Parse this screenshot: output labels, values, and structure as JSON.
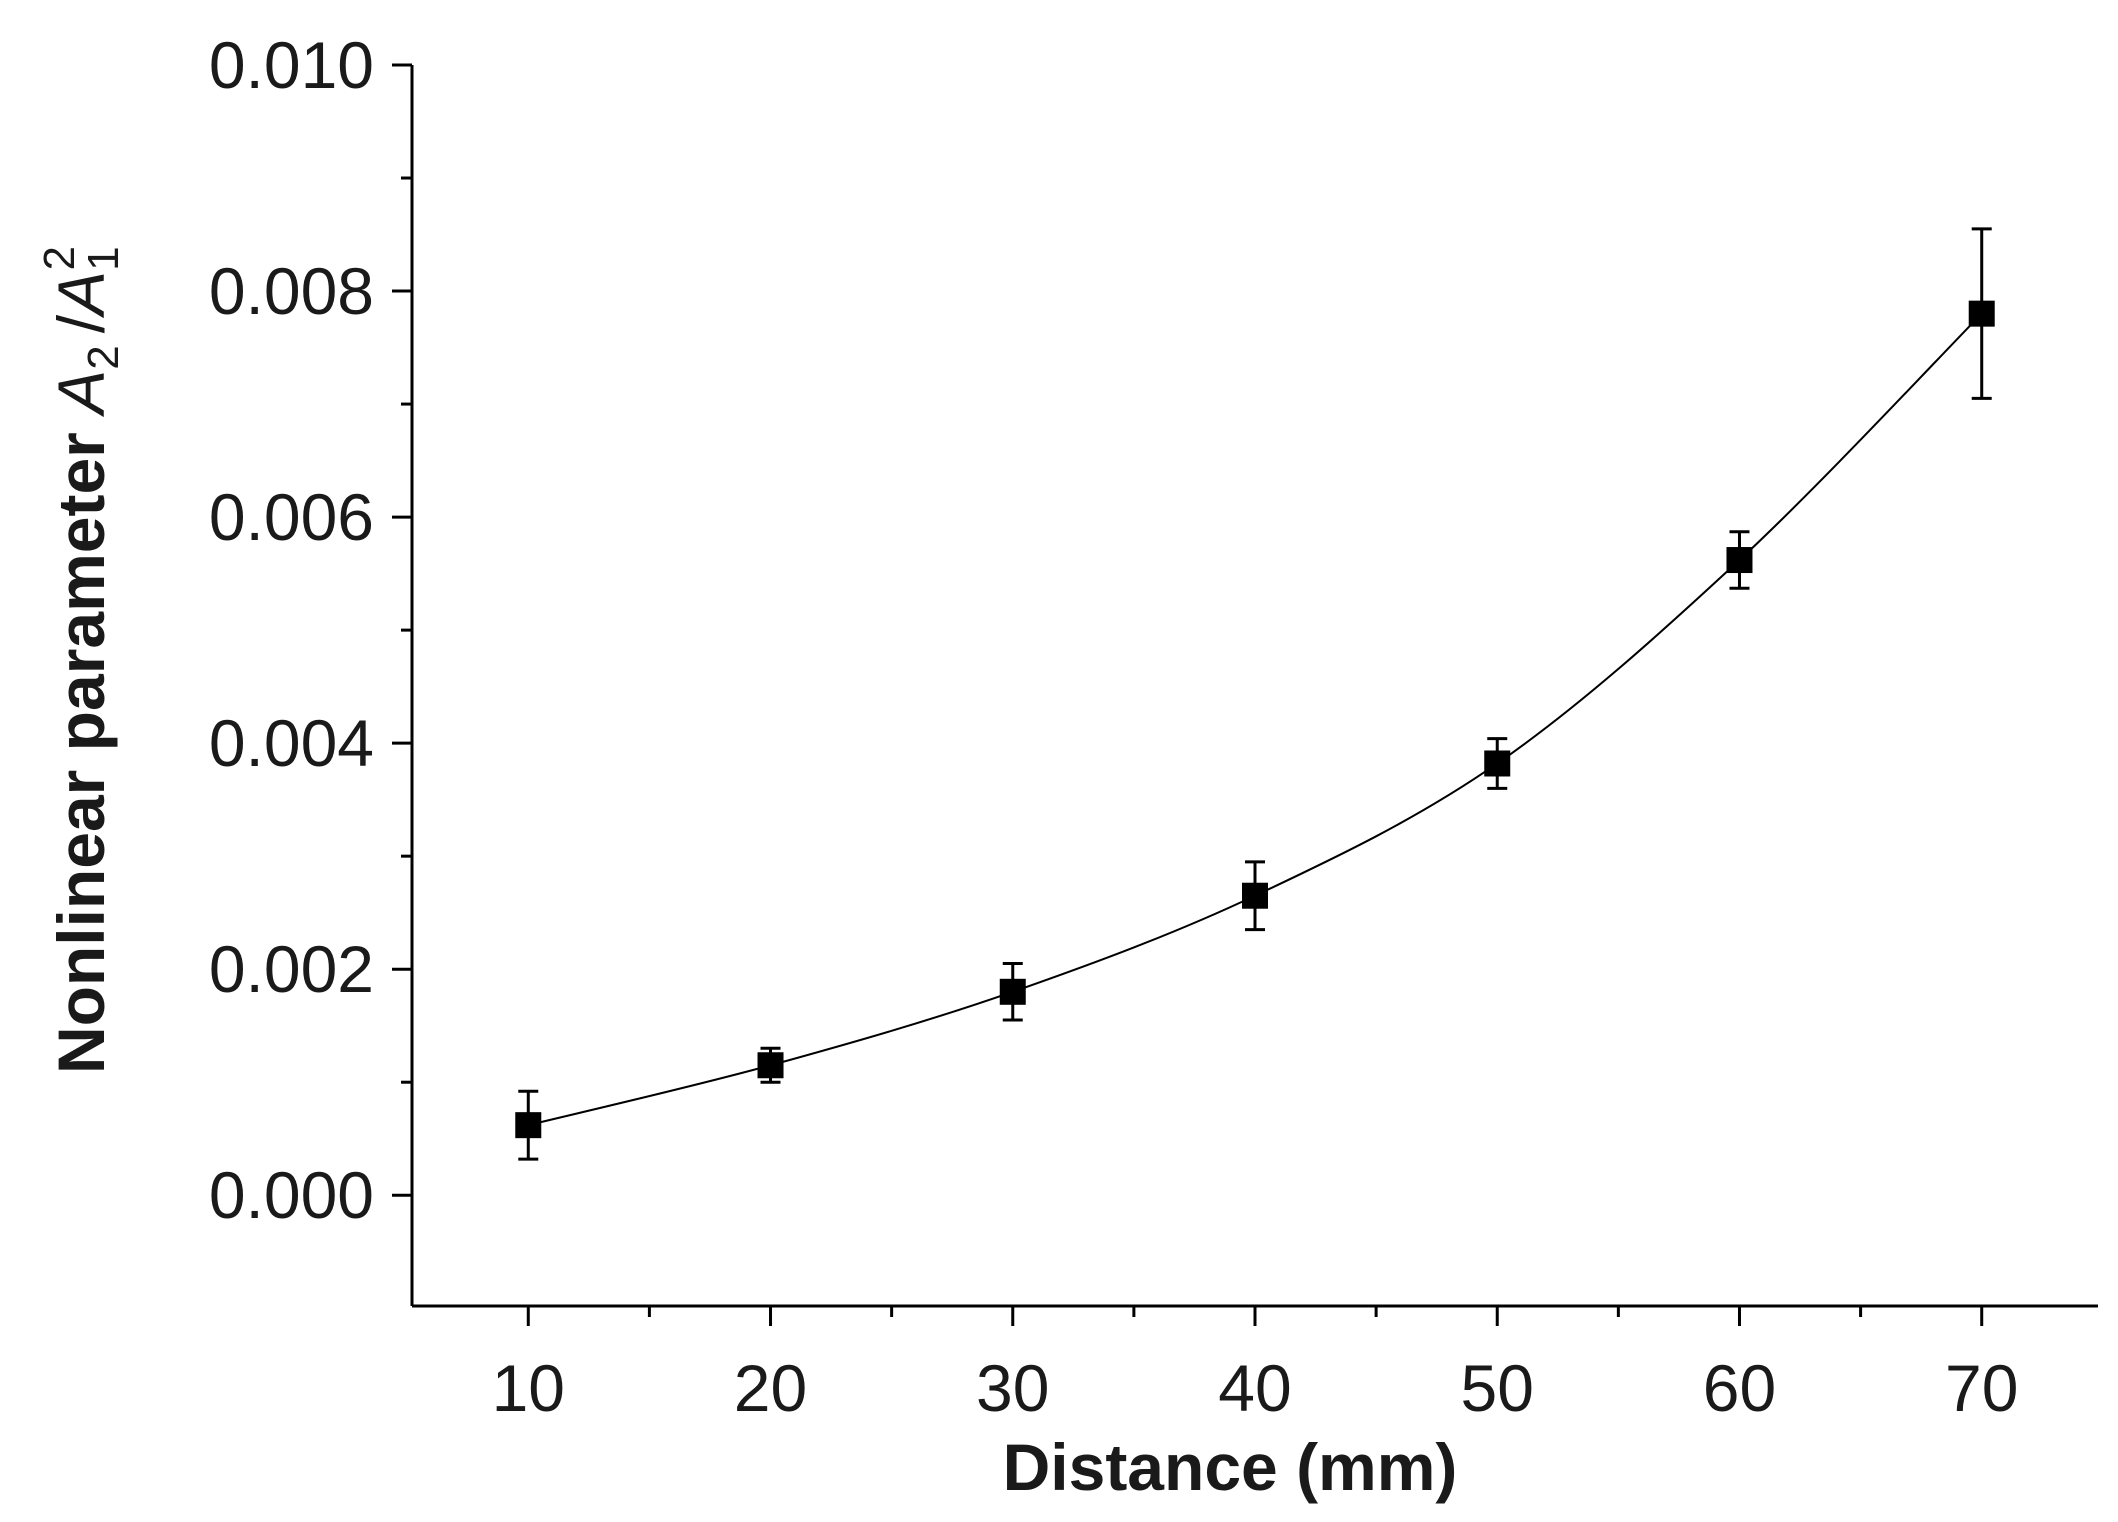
{
  "chart_data": {
    "type": "line",
    "title": "",
    "xlabel": "Distance (mm)",
    "ylabel": {
      "text": "Nonlinear parameter ",
      "numerator": "A",
      "numerator_sub": "2",
      "divider": "/",
      "denominator": "A",
      "denominator_sub": "1",
      "denominator_sup": "2"
    },
    "xlim": [
      5.2,
      74.8
    ],
    "ylim": [
      -0.00098,
      0.01
    ],
    "x_ticks": [
      10,
      20,
      30,
      40,
      50,
      60,
      70
    ],
    "x_tick_labels": [
      "10",
      "20",
      "30",
      "40",
      "50",
      "60",
      "70"
    ],
    "y_ticks": [
      0.0,
      0.002,
      0.004,
      0.006,
      0.008,
      0.01
    ],
    "y_tick_labels": [
      "0.000",
      "0.002",
      "0.004",
      "0.006",
      "0.008",
      "0.010"
    ],
    "grid": false,
    "series": [
      {
        "marker": "square",
        "color": "#000000",
        "x": [
          10,
          20,
          30,
          40,
          50,
          60,
          70
        ],
        "y": [
          0.00062,
          0.00115,
          0.0018,
          0.00265,
          0.00382,
          0.00562,
          0.0078
        ],
        "error": [
          0.0003,
          0.00015,
          0.00025,
          0.0003,
          0.00022,
          0.00025,
          0.00075
        ]
      }
    ]
  }
}
